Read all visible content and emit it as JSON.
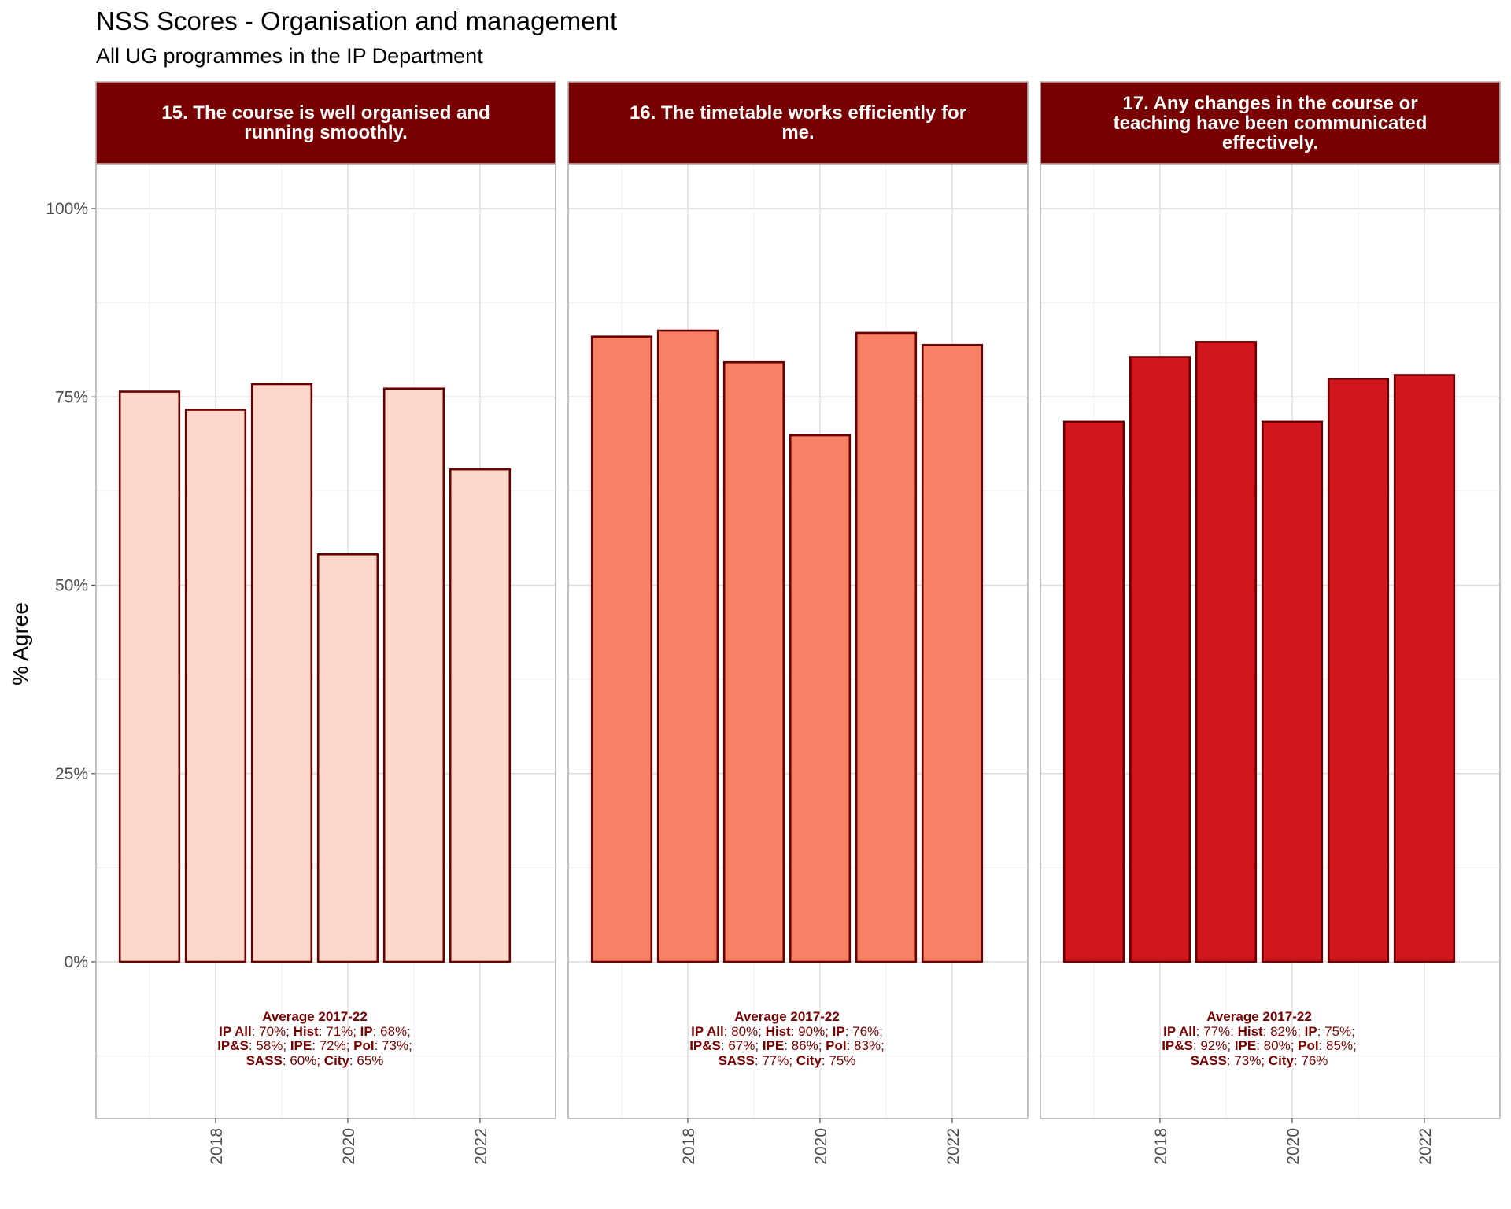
{
  "chart_data": {
    "type": "bar",
    "title": "NSS Scores - Organisation and management",
    "subtitle": "All UG programmes in the IP Department",
    "ylabel": "% Agree",
    "xlabel": "",
    "ylim": [
      -0.2,
      1.05
    ],
    "y_ticks": [
      0,
      0.25,
      0.5,
      0.75,
      1.0
    ],
    "y_tick_labels": [
      "0%",
      "25%",
      "50%",
      "75%",
      "100%"
    ],
    "x": [
      2017,
      2018,
      2019,
      2020,
      2021,
      2022
    ],
    "x_ticks": [
      2018,
      2020,
      2022
    ],
    "x_tick_labels": [
      "2018",
      "2020",
      "2022"
    ],
    "grid": true,
    "bar_outline_color": "#6b0000",
    "strip_color": "#780000",
    "panels": [
      {
        "strip": "15. The course is well organised and\nrunning smoothly.",
        "fill": "#fdd7c9",
        "values": [
          0.757,
          0.733,
          0.767,
          0.541,
          0.761,
          0.654
        ],
        "avg_title": "Average 2017-22",
        "avg_lines": [
          [
            [
              "IP All",
              ": 70%; "
            ],
            [
              "Hist",
              ": 71%; "
            ],
            [
              "IP",
              ": 68%;"
            ]
          ],
          [
            [
              "IP&S",
              ": 58%; "
            ],
            [
              "IPE",
              ": 72%; "
            ],
            [
              "Pol",
              ": 73%;"
            ]
          ],
          [
            [
              "SASS",
              ": 60%; "
            ],
            [
              "City",
              ": 65%"
            ]
          ]
        ]
      },
      {
        "strip": "16. The timetable works efficiently for\nme.",
        "fill": "#f88064",
        "values": [
          0.83,
          0.838,
          0.796,
          0.699,
          0.835,
          0.819
        ],
        "avg_title": "Average 2017-22",
        "avg_lines": [
          [
            [
              "IP All",
              ": 80%; "
            ],
            [
              "Hist",
              ": 90%; "
            ],
            [
              "IP",
              ": 76%;"
            ]
          ],
          [
            [
              "IP&S",
              ": 67%; "
            ],
            [
              "IPE",
              ": 86%; "
            ],
            [
              "Pol",
              ": 83%;"
            ]
          ],
          [
            [
              "SASS",
              ": 77%; "
            ],
            [
              "City",
              ": 75%"
            ]
          ]
        ]
      },
      {
        "strip": "17. Any changes in the course or\nteaching have been communicated\neffectively.",
        "fill": "#d2161e",
        "values": [
          0.717,
          0.803,
          0.823,
          0.717,
          0.774,
          0.779
        ],
        "avg_title": "Average 2017-22",
        "avg_lines": [
          [
            [
              "IP All",
              ": 77%; "
            ],
            [
              "Hist",
              ": 82%; "
            ],
            [
              "IP",
              ": 75%;"
            ]
          ],
          [
            [
              "IP&S",
              ": 92%; "
            ],
            [
              "IPE",
              ": 80%; "
            ],
            [
              "Pol",
              ": 85%;"
            ]
          ],
          [
            [
              "SASS",
              ": 73%; "
            ],
            [
              "City",
              ": 76%"
            ]
          ]
        ]
      }
    ]
  }
}
